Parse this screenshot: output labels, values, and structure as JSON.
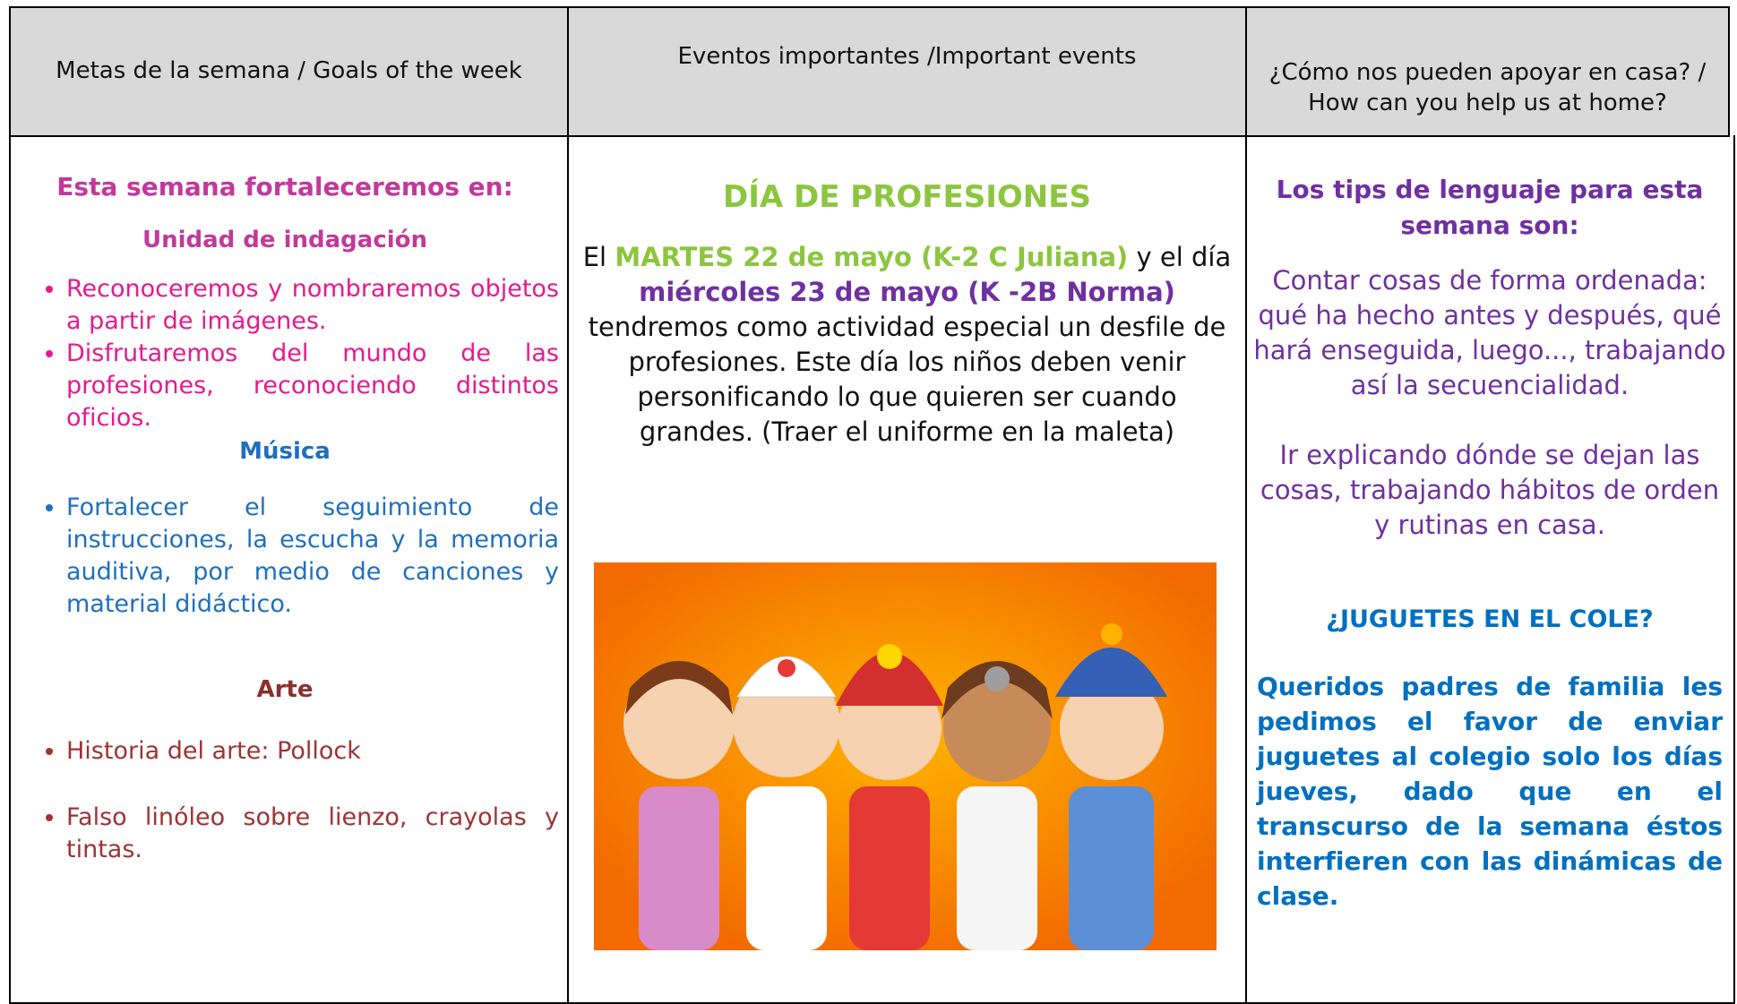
{
  "header": {
    "columns": [
      "Metas de la semana / Goals of the week",
      "Eventos importantes /Important events",
      "¿Cómo nos pueden apoyar en casa? / How can you help us at home?"
    ]
  },
  "goals": {
    "heading": "Esta semana fortaleceremos en:",
    "sections": [
      {
        "title": "Unidad de indagación",
        "items": [
          "Reconoceremos y nombraremos objetos a partir de imágenes.",
          "Disfrutaremos del mundo de las profesiones, reconociendo distintos oficios."
        ]
      },
      {
        "title": "Música",
        "items": [
          "Fortalecer el seguimiento de instrucciones, la escucha y la memoria auditiva, por medio de canciones y material didáctico."
        ]
      },
      {
        "title": "Arte",
        "items": [
          "Historia del arte: Pollock",
          "Falso linóleo sobre lienzo, crayolas y tintas."
        ]
      }
    ]
  },
  "events": {
    "title": "DÍA DE PROFESIONES",
    "runs": [
      "El ",
      "MARTES 22 de mayo (K-2 C Juliana)",
      " y el día ",
      "miércoles 23 de mayo (K -2B Norma)",
      " tendremos como actividad especial  un desfile de profesiones. Este  día los niños deben venir personificando lo que quieren ser cuando grandes. (Traer el uniforme en la maleta)"
    ]
  },
  "home": {
    "heading": "Los tips de lenguaje para esta semana son:",
    "tips": [
      " Contar cosas de forma ordenada: qué ha hecho antes y después, qué hará enseguida, luego..., trabajando así la secuencialidad.",
      " Ir explicando dónde se dejan las cosas, trabajando hábitos de orden y rutinas en casa."
    ],
    "toys_heading": "¿JUGUETES EN EL COLE?",
    "toys_text": "Queridos padres de familia les pedimos el favor de enviar juguetes al colegio solo los días jueves, dado que en el transcurso de la semana éstos interfieren con las dinámicas de clase."
  }
}
